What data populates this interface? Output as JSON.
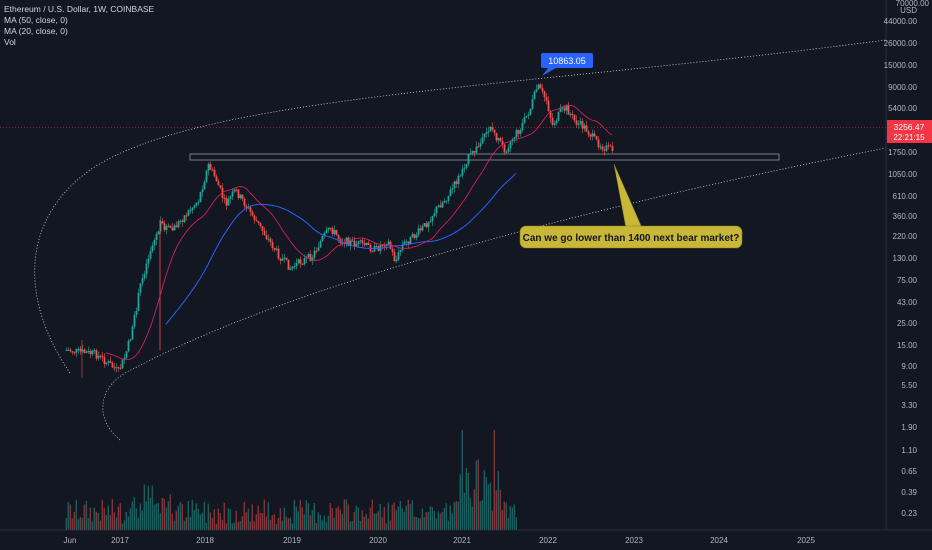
{
  "legend": {
    "symbol_line": "Ethereum / U.S. Dollar, 1W, COINBASE",
    "ma50": "MA (50, close, 0)",
    "ma20": "MA (20, close, 0)",
    "vol": "Vol"
  },
  "price_axis": {
    "top_label": "70000.00",
    "currency": "USD",
    "ticks": [
      "44000.00",
      "26000.00",
      "15000.00",
      "9000.00",
      "5400.00",
      "1750.00",
      "1050.00",
      "610.00",
      "360.00",
      "220.00",
      "130.00",
      "75.00",
      "43.00",
      "25.00",
      "15.00",
      "9.00",
      "5.50",
      "3.30",
      "1.90",
      "1.10",
      "0.65",
      "0.39",
      "0.23"
    ]
  },
  "time_axis": [
    "Jun",
    "2017",
    "2018",
    "2019",
    "2020",
    "2021",
    "2022",
    "2023",
    "2024",
    "2025"
  ],
  "current_price": {
    "value": "3256.47",
    "countdown": "22:21:15"
  },
  "peak_label": "10863.05",
  "note_text": "Can we go lower than 1400 next bear market?",
  "colors": {
    "background": "#131722",
    "up": "#26a69a",
    "down": "#ef5350",
    "ma50": "#2962ff",
    "ma20": "#e91e63",
    "price_badge": "#f23645",
    "peak_badge": "#2962ff",
    "note_fill": "#c9b738",
    "note_stroke": "#8a7d1f"
  }
}
